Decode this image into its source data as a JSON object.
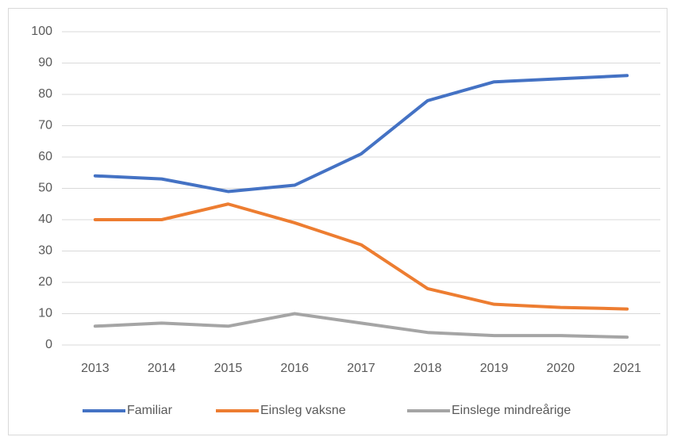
{
  "chart_data": {
    "type": "line",
    "categories": [
      "2013",
      "2014",
      "2015",
      "2016",
      "2017",
      "2018",
      "2019",
      "2020",
      "2021"
    ],
    "series": [
      {
        "name": "Familiar",
        "color": "#4472c4",
        "values": [
          54,
          53,
          49,
          51,
          61,
          78,
          84,
          85,
          86
        ]
      },
      {
        "name": "Einsleg vaksne",
        "color": "#ed7d31",
        "values": [
          40,
          40,
          45,
          39,
          32,
          18,
          13,
          12,
          11.5
        ]
      },
      {
        "name": "Einslege mindreårige",
        "color": "#a5a5a5",
        "values": [
          6,
          7,
          6,
          10,
          7,
          4,
          3,
          3,
          2.5
        ]
      }
    ],
    "ylim": [
      0,
      100
    ],
    "yticks": [
      0,
      10,
      20,
      30,
      40,
      50,
      60,
      70,
      80,
      90,
      100
    ],
    "grid": true,
    "legend": "bottom"
  }
}
